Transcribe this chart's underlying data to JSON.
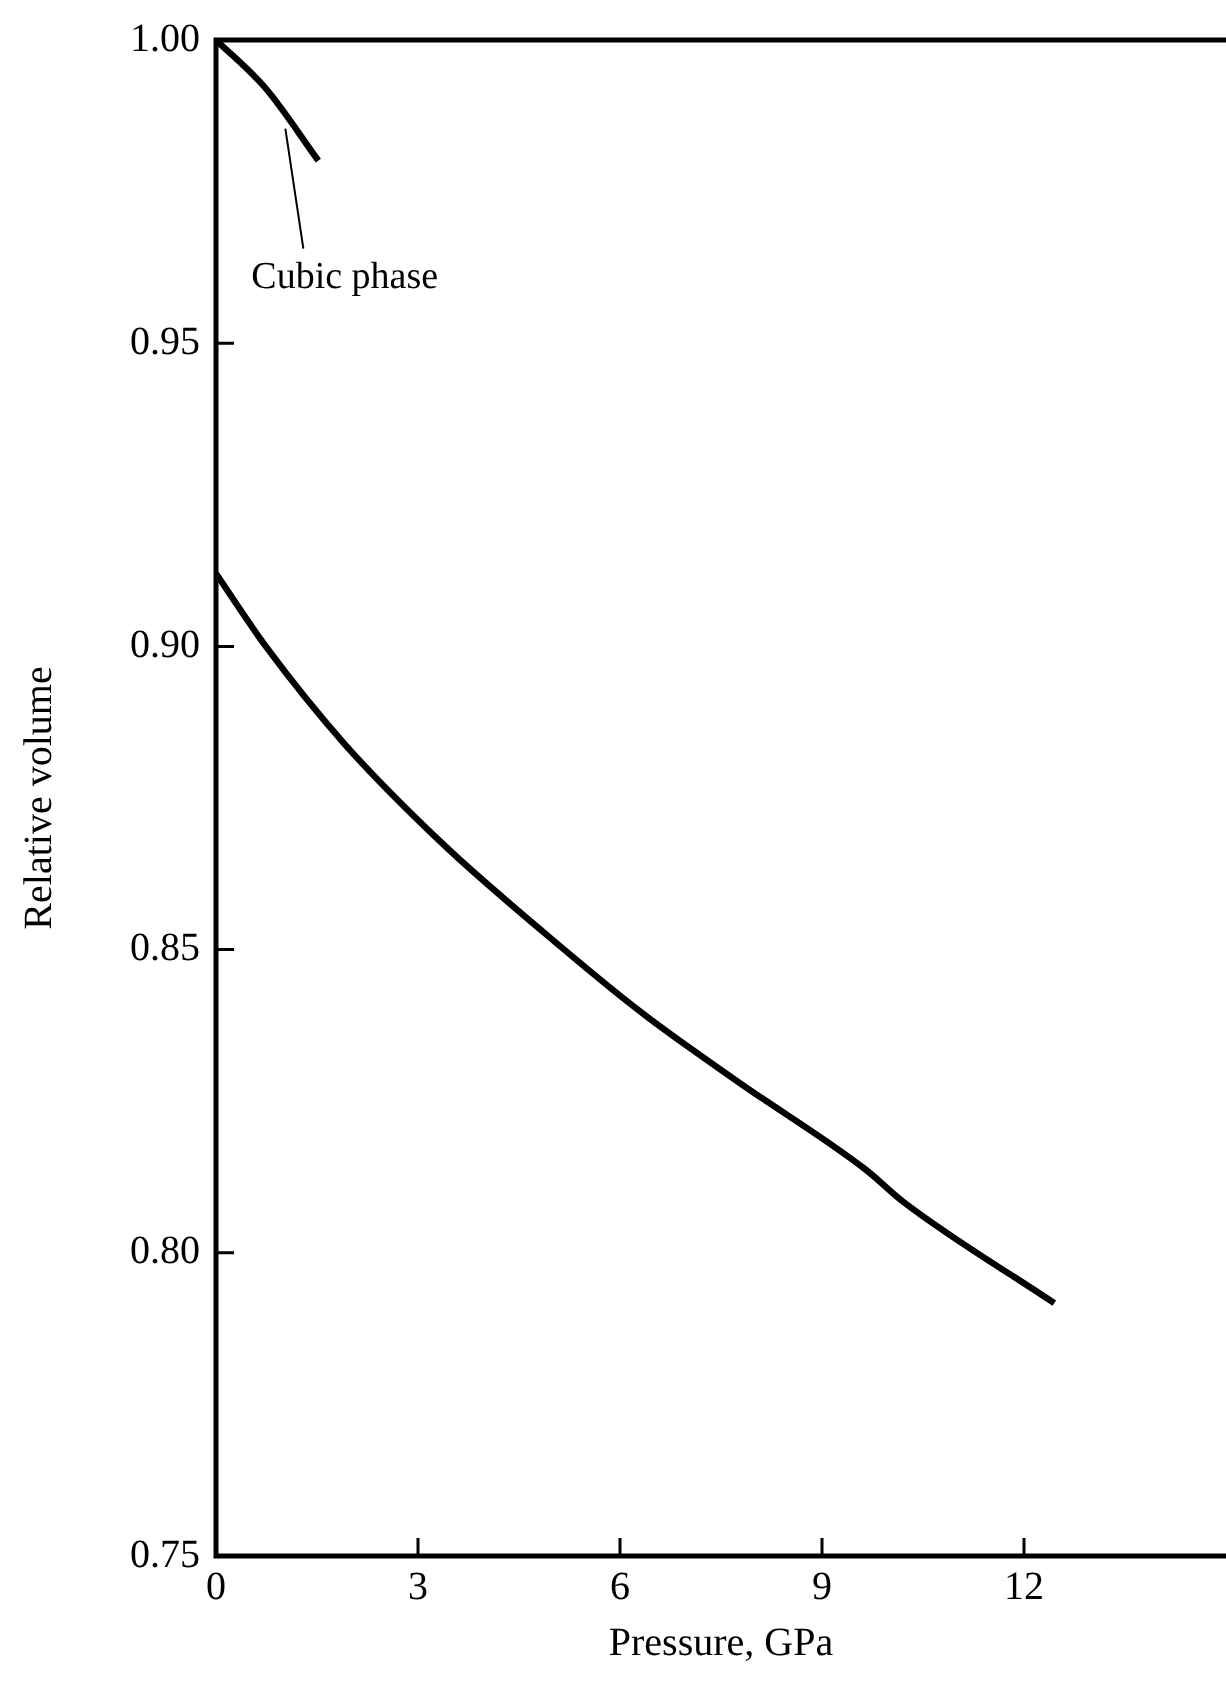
{
  "chart_data": {
    "type": "line",
    "xlabel": "Pressure, GPa",
    "ylabel": "Relative volume",
    "xlim": [
      0,
      15
    ],
    "xticks": [
      0,
      3,
      6,
      9,
      12
    ],
    "ylim": [
      0.75,
      1.0
    ],
    "yticks": [
      {
        "value": 0.75,
        "label": "0.75"
      },
      {
        "value": 0.8,
        "label": "0.80"
      },
      {
        "value": 0.85,
        "label": "0.85"
      },
      {
        "value": 0.9,
        "label": "0.90"
      },
      {
        "value": 0.95,
        "label": "0.95"
      },
      {
        "value": 1.0,
        "label": "1.00"
      }
    ],
    "series": [
      {
        "color": "#000000",
        "x": [
          0,
          0.74,
          1.52
        ],
        "values": [
          1.0,
          0.992,
          0.9801
        ]
      },
      {
        "color": "#000000",
        "x": [
          0,
          0.74,
          1.91,
          3.38,
          4.85,
          6.31,
          7.78,
          9.64,
          10.22,
          12.45
        ],
        "values": [
          0.912,
          0.9,
          0.8839,
          0.8673,
          0.853,
          0.8397,
          0.828,
          0.8138,
          0.8083,
          0.7917
        ]
      }
    ],
    "annotations": [
      {
        "text": "Cubic phase",
        "x": 1.03,
        "y": 0.9854
      }
    ],
    "grid": false,
    "legend": false,
    "marker": "none",
    "line_style": "solid"
  }
}
